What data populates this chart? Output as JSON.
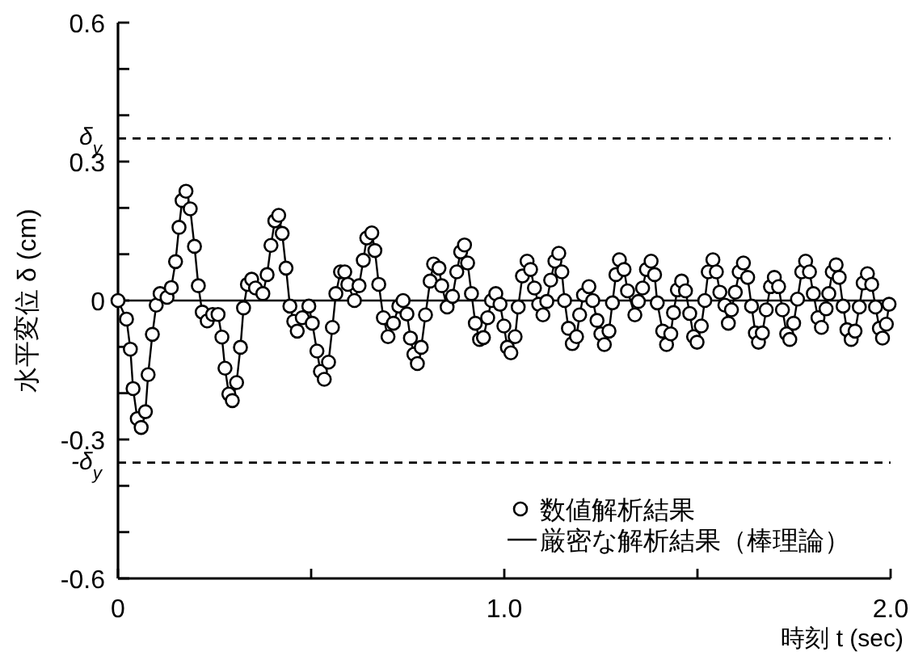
{
  "chart_data": {
    "type": "scatter",
    "xlabel": "時刻 t (sec)",
    "ylabel": "水平変位 δ (cm)",
    "xlim": [
      0,
      2
    ],
    "ylim": [
      -0.6,
      0.6
    ],
    "xticks": [
      0,
      {
        "value": 0.5,
        "label": null
      },
      {
        "value": 1,
        "label": "1.0"
      },
      {
        "value": 1.5,
        "label": null
      },
      {
        "value": 2,
        "label": "2.0"
      }
    ],
    "yticks": [
      -0.6,
      {
        "value": -0.5,
        "label": null
      },
      {
        "value": -0.4,
        "label": null
      },
      -0.3,
      {
        "value": -0.2,
        "label": null
      },
      {
        "value": -0.1,
        "label": null
      },
      0,
      {
        "value": 0.1,
        "label": null
      },
      {
        "value": 0.2,
        "label": null
      },
      0.3,
      {
        "value": 0.4,
        "label": null
      },
      {
        "value": 0.5,
        "label": null
      },
      0.6
    ],
    "legend": "bottom right",
    "ref_lines": [
      {
        "axis": "y",
        "value": 0.35,
        "label": "δ$_{y}$",
        "line_style": "dashed",
        "color": "#000000"
      },
      {
        "axis": "y",
        "value": -0.35,
        "label": "-δ$_{y}$",
        "line_style": "dashed",
        "color": "#000000"
      },
      {
        "axis": "y",
        "value": 0,
        "line_style": "solid",
        "color": "#000000"
      }
    ],
    "series": [
      {
        "name": "数値解析結果",
        "type": "scatter",
        "marker": "circle",
        "color": "#000000",
        "x": [
          0,
          0.022,
          0.032,
          0.039,
          0.05,
          0.06,
          0.071,
          0.078,
          0.089,
          0.099,
          0.109,
          0.127,
          0.138,
          0.149,
          0.158,
          0.166,
          0.176,
          0.187,
          0.198,
          0.208,
          0.218,
          0.231,
          0.245,
          0.259,
          0.269,
          0.277,
          0.287,
          0.296,
          0.307,
          0.317,
          0.325,
          0.335,
          0.346,
          0.356,
          0.375,
          0.386,
          0.396,
          0.406,
          0.416,
          0.425,
          0.435,
          0.445,
          0.455,
          0.464,
          0.477,
          0.494,
          0.503,
          0.515,
          0.524,
          0.534,
          0.545,
          0.555,
          0.564,
          0.576,
          0.587,
          0.595,
          0.612,
          0.624,
          0.635,
          0.644,
          0.657,
          0.665,
          0.675,
          0.687,
          0.699,
          0.713,
          0.727,
          0.738,
          0.748,
          0.757,
          0.766,
          0.775,
          0.785,
          0.796,
          0.808,
          0.817,
          0.831,
          0.838,
          0.852,
          0.866,
          0.877,
          0.887,
          0.897,
          0.905,
          0.915,
          0.925,
          0.936,
          0.946,
          0.957,
          0.967,
          0.978,
          0.989,
          0.999,
          1.008,
          1.017,
          1.028,
          1.036,
          1.047,
          1.059,
          1.068,
          1.078,
          1.089,
          1.1,
          1.11,
          1.12,
          1.131,
          1.141,
          1.149,
          1.156,
          1.166,
          1.176,
          1.187,
          1.195,
          1.205,
          1.219,
          1.229,
          1.24,
          1.25,
          1.259,
          1.271,
          1.28,
          1.289,
          1.298,
          1.31,
          1.319,
          1.338,
          1.347,
          1.358,
          1.368,
          1.38,
          1.389,
          1.396,
          1.41,
          1.42,
          1.431,
          1.438,
          1.448,
          1.459,
          1.469,
          1.48,
          1.49,
          1.499,
          1.51,
          1.519,
          1.528,
          1.54,
          1.549,
          1.558,
          1.571,
          1.58,
          1.588,
          1.598,
          1.608,
          1.619,
          1.63,
          1.64,
          1.65,
          1.658,
          1.668,
          1.678,
          1.689,
          1.699,
          1.71,
          1.72,
          1.731,
          1.739,
          1.749,
          1.759,
          1.77,
          1.78,
          1.79,
          1.8,
          1.812,
          1.821,
          1.833,
          1.84,
          1.849,
          1.859,
          1.867,
          1.877,
          1.887,
          1.898,
          1.908,
          1.919,
          1.929,
          1.94,
          1.951,
          1.961,
          1.971,
          1.979,
          1.989,
          1.996
        ],
        "values": [
          0,
          -0.04,
          -0.105,
          -0.19,
          -0.255,
          -0.274,
          -0.24,
          -0.16,
          -0.073,
          -0.01,
          0.015,
          0.007,
          0.028,
          0.084,
          0.158,
          0.216,
          0.236,
          0.198,
          0.117,
          0.032,
          -0.025,
          -0.044,
          -0.03,
          -0.03,
          -0.079,
          -0.146,
          -0.202,
          -0.216,
          -0.177,
          -0.101,
          -0.016,
          0.035,
          0.046,
          0.027,
          0.015,
          0.056,
          0.119,
          0.172,
          0.184,
          0.145,
          0.07,
          -0.012,
          -0.045,
          -0.066,
          -0.037,
          -0.012,
          -0.049,
          -0.109,
          -0.153,
          -0.17,
          -0.133,
          -0.058,
          0.015,
          0.062,
          0.062,
          0.035,
          0,
          0.032,
          0.087,
          0.135,
          0.146,
          0.108,
          0.035,
          -0.037,
          -0.078,
          -0.049,
          -0.012,
          0,
          -0.029,
          -0.081,
          -0.116,
          -0.136,
          -0.101,
          -0.031,
          0.042,
          0.079,
          0.07,
          0.032,
          -0.014,
          0.009,
          0.062,
          0.105,
          0.12,
          0.081,
          0.015,
          -0.049,
          -0.084,
          -0.08,
          -0.037,
          0,
          0.015,
          -0.008,
          -0.055,
          -0.101,
          -0.113,
          -0.078,
          -0.014,
          0.053,
          0.085,
          0.067,
          0.027,
          -0.008,
          -0.031,
          -0.002,
          0.044,
          0.085,
          0.102,
          0.062,
          0,
          -0.06,
          -0.093,
          -0.078,
          -0.031,
          0.012,
          0.03,
          0,
          -0.043,
          -0.072,
          -0.095,
          -0.066,
          -0.005,
          0.056,
          0.088,
          0.067,
          0.021,
          -0.031,
          -0.002,
          0.027,
          0.067,
          0.085,
          0.056,
          -0.005,
          -0.066,
          -0.095,
          -0.072,
          -0.026,
          0.023,
          0.042,
          0.021,
          -0.028,
          -0.078,
          -0.09,
          -0.055,
          0,
          0.062,
          0.088,
          0.062,
          0.018,
          -0.01,
          -0.049,
          -0.02,
          0.018,
          0.062,
          0.081,
          0.05,
          -0.012,
          -0.07,
          -0.09,
          -0.07,
          -0.02,
          0.03,
          0.05,
          0.03,
          -0.02,
          -0.072,
          -0.084,
          -0.049,
          0.003,
          0.062,
          0.085,
          0.062,
          0.015,
          -0.037,
          -0.058,
          -0.018,
          0.015,
          0.062,
          0.077,
          0.05,
          -0.012,
          -0.063,
          -0.084,
          -0.066,
          -0.014,
          0.038,
          0.058,
          0.035,
          -0.014,
          -0.06,
          -0.081,
          -0.051,
          -0.008
        ]
      },
      {
        "name": "厳密な解析結果（棒理論）",
        "type": "line",
        "line_style": "solid",
        "color": "#000000",
        "x": [
          0,
          0.022,
          0.032,
          0.039,
          0.05,
          0.06,
          0.071,
          0.078,
          0.089,
          0.099,
          0.109,
          0.127,
          0.138,
          0.149,
          0.158,
          0.166,
          0.176,
          0.187,
          0.198,
          0.208,
          0.218,
          0.231,
          0.245,
          0.259,
          0.269,
          0.277,
          0.287,
          0.296,
          0.307,
          0.317,
          0.325,
          0.335,
          0.346,
          0.356,
          0.375,
          0.386,
          0.396,
          0.406,
          0.416,
          0.425,
          0.435,
          0.445,
          0.455,
          0.464,
          0.477,
          0.494,
          0.503,
          0.515,
          0.524,
          0.534,
          0.545,
          0.555,
          0.564,
          0.576,
          0.587,
          0.595,
          0.612,
          0.624,
          0.635,
          0.644,
          0.657,
          0.665,
          0.675,
          0.687,
          0.699,
          0.713,
          0.727,
          0.738,
          0.748,
          0.757,
          0.766,
          0.775,
          0.785,
          0.796,
          0.808,
          0.817,
          0.831,
          0.838,
          0.852,
          0.866,
          0.877,
          0.887,
          0.897,
          0.905,
          0.915,
          0.925,
          0.936,
          0.946,
          0.957,
          0.967,
          0.978,
          0.989,
          0.999,
          1.008,
          1.017,
          1.028,
          1.036,
          1.047,
          1.059,
          1.068,
          1.078,
          1.089,
          1.1,
          1.11,
          1.12,
          1.131,
          1.141,
          1.149,
          1.156,
          1.166,
          1.176,
          1.187,
          1.195,
          1.205,
          1.219,
          1.229,
          1.24,
          1.25,
          1.259,
          1.271,
          1.28,
          1.289,
          1.298,
          1.31,
          1.319,
          1.338,
          1.347,
          1.358,
          1.368,
          1.38,
          1.389,
          1.396,
          1.41,
          1.42,
          1.431,
          1.438,
          1.448,
          1.459,
          1.469,
          1.48,
          1.49,
          1.499,
          1.51,
          1.519,
          1.528,
          1.54,
          1.549,
          1.558,
          1.571,
          1.58,
          1.588,
          1.598,
          1.608,
          1.619,
          1.63,
          1.64,
          1.65,
          1.658,
          1.668,
          1.678,
          1.689,
          1.699,
          1.71,
          1.72,
          1.731,
          1.739,
          1.749,
          1.759,
          1.77,
          1.78,
          1.79,
          1.8,
          1.812,
          1.821,
          1.833,
          1.84,
          1.849,
          1.859,
          1.867,
          1.877,
          1.887,
          1.898,
          1.908,
          1.919,
          1.929,
          1.94,
          1.951,
          1.961,
          1.971,
          1.979,
          1.989,
          1.996
        ],
        "values": [
          0,
          -0.04,
          -0.105,
          -0.19,
          -0.255,
          -0.274,
          -0.24,
          -0.16,
          -0.073,
          -0.01,
          0.015,
          0.007,
          0.028,
          0.084,
          0.158,
          0.216,
          0.236,
          0.198,
          0.117,
          0.032,
          -0.025,
          -0.044,
          -0.03,
          -0.03,
          -0.079,
          -0.146,
          -0.202,
          -0.216,
          -0.177,
          -0.101,
          -0.016,
          0.035,
          0.046,
          0.027,
          0.015,
          0.056,
          0.119,
          0.172,
          0.184,
          0.145,
          0.07,
          -0.012,
          -0.045,
          -0.066,
          -0.037,
          -0.012,
          -0.049,
          -0.109,
          -0.153,
          -0.17,
          -0.133,
          -0.058,
          0.015,
          0.062,
          0.062,
          0.035,
          0,
          0.032,
          0.087,
          0.135,
          0.146,
          0.108,
          0.035,
          -0.037,
          -0.078,
          -0.049,
          -0.012,
          0,
          -0.029,
          -0.081,
          -0.116,
          -0.136,
          -0.101,
          -0.031,
          0.042,
          0.079,
          0.07,
          0.032,
          -0.014,
          0.009,
          0.062,
          0.105,
          0.12,
          0.081,
          0.015,
          -0.049,
          -0.084,
          -0.08,
          -0.037,
          0,
          0.015,
          -0.008,
          -0.055,
          -0.101,
          -0.113,
          -0.078,
          -0.014,
          0.053,
          0.085,
          0.067,
          0.027,
          -0.008,
          -0.031,
          -0.002,
          0.044,
          0.085,
          0.102,
          0.062,
          0,
          -0.06,
          -0.093,
          -0.078,
          -0.031,
          0.012,
          0.03,
          0,
          -0.043,
          -0.072,
          -0.095,
          -0.066,
          -0.005,
          0.056,
          0.088,
          0.067,
          0.021,
          -0.031,
          -0.002,
          0.027,
          0.067,
          0.085,
          0.056,
          -0.005,
          -0.066,
          -0.095,
          -0.072,
          -0.026,
          0.023,
          0.042,
          0.021,
          -0.028,
          -0.078,
          -0.09,
          -0.055,
          0,
          0.062,
          0.088,
          0.062,
          0.018,
          -0.01,
          -0.049,
          -0.02,
          0.018,
          0.062,
          0.081,
          0.05,
          -0.012,
          -0.07,
          -0.09,
          -0.07,
          -0.02,
          0.03,
          0.05,
          0.03,
          -0.02,
          -0.072,
          -0.084,
          -0.049,
          0.003,
          0.062,
          0.085,
          0.062,
          0.015,
          -0.037,
          -0.058,
          -0.018,
          0.015,
          0.062,
          0.077,
          0.05,
          -0.012,
          -0.063,
          -0.084,
          -0.066,
          -0.014,
          0.038,
          0.058,
          0.035,
          -0.014,
          -0.06,
          -0.081,
          -0.051,
          -0.008
        ]
      }
    ]
  }
}
